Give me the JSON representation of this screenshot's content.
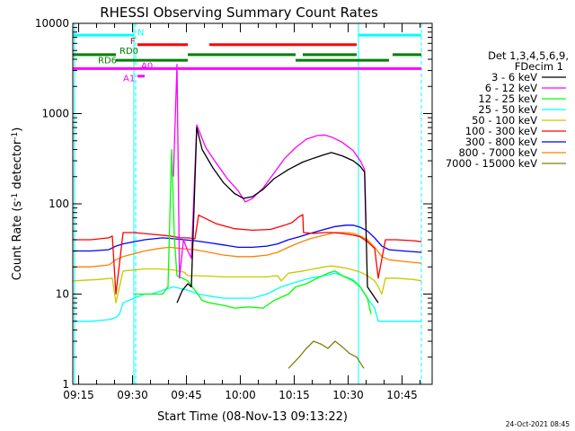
{
  "chart_data": {
    "type": "line",
    "title": "RHESSI Observing Summary Count Rates",
    "xlabel": "Start Time (08-Nov-13 09:13:22)",
    "ylabel_main": "Count Rate (s",
    "ylabel_sup1": "-1",
    "ylabel_mid": " detector",
    "ylabel_sup2": "-1",
    "ylabel_end": ")",
    "y_scale": "log",
    "ylim": [
      1,
      10000
    ],
    "xlim_minutes": [
      0,
      100
    ],
    "x_tick_labels": [
      "09:15",
      "09:30",
      "09:45",
      "10:00",
      "10:15",
      "10:30",
      "10:45"
    ],
    "y_tick_labels": [
      "1",
      "10",
      "100",
      "1000",
      "10000"
    ],
    "legend_title": [
      "Det 1,3,4,5,6,9,",
      "FDecim 1"
    ],
    "legend_position": "right",
    "grid": false,
    "series": [
      {
        "name": "3 - 6 keV",
        "color": "#000000",
        "points": [
          [
            29,
            8
          ],
          [
            30.5,
            11
          ],
          [
            32,
            13
          ],
          [
            33,
            12
          ],
          [
            34.5,
            700
          ],
          [
            36,
            400
          ],
          [
            39,
            250
          ],
          [
            42,
            170
          ],
          [
            45,
            130
          ],
          [
            47.5,
            115
          ],
          [
            50,
            120
          ],
          [
            53,
            145
          ],
          [
            56,
            190
          ],
          [
            60,
            240
          ],
          [
            64,
            290
          ],
          [
            67,
            320
          ],
          [
            70,
            350
          ],
          [
            72,
            370
          ],
          [
            75,
            340
          ],
          [
            78,
            300
          ],
          [
            80,
            260
          ],
          [
            81.2,
            225
          ],
          [
            82,
            12
          ],
          [
            85,
            8
          ]
        ]
      },
      {
        "name": "6 - 12 keV",
        "color": "#ff00ff",
        "points": [
          [
            28,
            200
          ],
          [
            29,
            3500
          ],
          [
            29.7,
            15
          ],
          [
            30.8,
            40
          ],
          [
            32,
            30
          ],
          [
            33,
            25
          ],
          [
            34.5,
            750
          ],
          [
            37,
            420
          ],
          [
            40,
            280
          ],
          [
            43,
            190
          ],
          [
            46,
            140
          ],
          [
            48,
            105
          ],
          [
            50,
            115
          ],
          [
            53,
            150
          ],
          [
            56,
            220
          ],
          [
            59,
            320
          ],
          [
            62,
            420
          ],
          [
            65,
            520
          ],
          [
            68,
            570
          ],
          [
            70,
            580
          ],
          [
            72,
            550
          ],
          [
            75,
            480
          ],
          [
            78,
            390
          ],
          [
            80,
            300
          ],
          [
            81.2,
            240
          ],
          [
            81.6,
            60
          ]
        ]
      },
      {
        "name": "12 - 25 keV",
        "color": "#00ff00",
        "points": [
          [
            17,
            10
          ],
          [
            22,
            10
          ],
          [
            25,
            10
          ],
          [
            26.5,
            12
          ],
          [
            27.5,
            400
          ],
          [
            28.3,
            40
          ],
          [
            29,
            16
          ],
          [
            32,
            14
          ],
          [
            34.8,
            10
          ],
          [
            36,
            8.5
          ],
          [
            38,
            8
          ],
          [
            42,
            7.5
          ],
          [
            45,
            7
          ],
          [
            49,
            7.2
          ],
          [
            53,
            7
          ],
          [
            56,
            8.5
          ],
          [
            60,
            10
          ],
          [
            62,
            12
          ],
          [
            65,
            13
          ],
          [
            68,
            15
          ],
          [
            71,
            17
          ],
          [
            73,
            18
          ],
          [
            75,
            16
          ],
          [
            78,
            14
          ],
          [
            80,
            12
          ],
          [
            82,
            9
          ],
          [
            83,
            6
          ]
        ]
      },
      {
        "name": "25 - 50 keV",
        "color": "#00ffff",
        "points": [
          [
            0,
            5
          ],
          [
            5,
            5
          ],
          [
            10,
            5.2
          ],
          [
            12,
            5.5
          ],
          [
            13,
            6
          ],
          [
            14,
            8
          ],
          [
            17,
            9
          ],
          [
            20,
            10
          ],
          [
            22,
            10
          ],
          [
            25,
            11
          ],
          [
            28,
            12
          ],
          [
            30,
            11.5
          ],
          [
            32,
            11
          ],
          [
            35,
            10
          ],
          [
            38,
            9.5
          ],
          [
            42,
            9
          ],
          [
            46,
            9
          ],
          [
            50,
            9
          ],
          [
            54,
            10
          ],
          [
            58,
            12
          ],
          [
            62,
            13.5
          ],
          [
            66,
            15
          ],
          [
            70,
            16
          ],
          [
            73,
            17
          ],
          [
            75,
            16
          ],
          [
            78,
            14.5
          ],
          [
            80,
            12
          ],
          [
            82,
            9
          ],
          [
            84,
            7
          ],
          [
            85,
            5
          ],
          [
            95,
            5
          ],
          [
            97,
            5
          ]
        ]
      },
      {
        "name": "50 - 100 keV",
        "color": "#c8c800",
        "points": [
          [
            0,
            14
          ],
          [
            7,
            14.5
          ],
          [
            11,
            15
          ],
          [
            12,
            8
          ],
          [
            14,
            18
          ],
          [
            20,
            19
          ],
          [
            24,
            19
          ],
          [
            28,
            18.5
          ],
          [
            31,
            17.5
          ],
          [
            32,
            16
          ],
          [
            34,
            16
          ],
          [
            38,
            15.8
          ],
          [
            42,
            15.5
          ],
          [
            46,
            15.5
          ],
          [
            50,
            15.5
          ],
          [
            54,
            15.5
          ],
          [
            57,
            16
          ],
          [
            58,
            14
          ],
          [
            60,
            17
          ],
          [
            64,
            18
          ],
          [
            67,
            19
          ],
          [
            70,
            20
          ],
          [
            72,
            20.5
          ],
          [
            74,
            20
          ],
          [
            77,
            19
          ],
          [
            80,
            17.5
          ],
          [
            82,
            16
          ],
          [
            84,
            14
          ],
          [
            85,
            12
          ],
          [
            86,
            10
          ],
          [
            87,
            15
          ],
          [
            90,
            15
          ],
          [
            95,
            14.5
          ],
          [
            97,
            14
          ]
        ]
      },
      {
        "name": "100 - 300 keV",
        "color": "#ff0000",
        "points": [
          [
            0,
            40
          ],
          [
            5,
            40
          ],
          [
            10,
            42
          ],
          [
            11,
            44
          ],
          [
            12,
            10
          ],
          [
            14,
            48
          ],
          [
            17,
            48
          ],
          [
            22,
            46
          ],
          [
            27,
            44
          ],
          [
            30,
            42
          ],
          [
            32,
            42
          ],
          [
            34,
            41
          ],
          [
            35,
            75
          ],
          [
            40,
            60
          ],
          [
            45,
            53
          ],
          [
            50,
            51
          ],
          [
            55,
            52
          ],
          [
            59,
            58
          ],
          [
            61,
            62
          ],
          [
            63,
            72
          ],
          [
            64,
            76
          ],
          [
            64.2,
            48
          ],
          [
            67,
            47
          ],
          [
            70,
            48
          ],
          [
            72,
            48
          ],
          [
            75,
            47
          ],
          [
            78,
            45
          ],
          [
            80,
            43
          ],
          [
            82,
            38
          ],
          [
            84,
            32
          ],
          [
            85,
            15
          ],
          [
            87,
            40
          ],
          [
            90,
            40
          ],
          [
            95,
            39
          ],
          [
            97,
            38
          ]
        ]
      },
      {
        "name": "300 - 800 keV",
        "color": "#0000ff",
        "points": [
          [
            0,
            30
          ],
          [
            5,
            30
          ],
          [
            10,
            31
          ],
          [
            12,
            34
          ],
          [
            14,
            36
          ],
          [
            17,
            38
          ],
          [
            20,
            40
          ],
          [
            25,
            42
          ],
          [
            28,
            41
          ],
          [
            31,
            40
          ],
          [
            34,
            39
          ],
          [
            38,
            37
          ],
          [
            42,
            35
          ],
          [
            46,
            33
          ],
          [
            50,
            33
          ],
          [
            54,
            34
          ],
          [
            57,
            36
          ],
          [
            60,
            40
          ],
          [
            63,
            43
          ],
          [
            66,
            47
          ],
          [
            70,
            52
          ],
          [
            73,
            56
          ],
          [
            76,
            58
          ],
          [
            78,
            58
          ],
          [
            80,
            55
          ],
          [
            82,
            50
          ],
          [
            84,
            42
          ],
          [
            86,
            34
          ],
          [
            88,
            31
          ],
          [
            92,
            30
          ],
          [
            97,
            29
          ]
        ]
      },
      {
        "name": "800 - 7000 keV",
        "color": "#ff8000",
        "points": [
          [
            0,
            20
          ],
          [
            5,
            20
          ],
          [
            10,
            21
          ],
          [
            12,
            24
          ],
          [
            14,
            26
          ],
          [
            17,
            28
          ],
          [
            20,
            30
          ],
          [
            24,
            32
          ],
          [
            27,
            33
          ],
          [
            30,
            32
          ],
          [
            34,
            31
          ],
          [
            38,
            29
          ],
          [
            42,
            27
          ],
          [
            46,
            26
          ],
          [
            50,
            26
          ],
          [
            54,
            27
          ],
          [
            57,
            29
          ],
          [
            60,
            33
          ],
          [
            63,
            37
          ],
          [
            66,
            41
          ],
          [
            70,
            45
          ],
          [
            73,
            48
          ],
          [
            76,
            48
          ],
          [
            78,
            47
          ],
          [
            80,
            44
          ],
          [
            82,
            40
          ],
          [
            84,
            33
          ],
          [
            86,
            26
          ],
          [
            88,
            24
          ],
          [
            92,
            23
          ],
          [
            97,
            22
          ]
        ]
      },
      {
        "name": "7000 - 15000 keV",
        "color": "#808000",
        "points": [
          [
            60,
            1.5
          ],
          [
            63,
            2
          ],
          [
            65,
            2.5
          ],
          [
            67,
            3
          ],
          [
            69,
            2.8
          ],
          [
            71,
            2.5
          ],
          [
            73,
            3
          ],
          [
            75,
            2.6
          ],
          [
            77,
            2.2
          ],
          [
            79,
            2
          ],
          [
            81,
            1.5
          ]
        ]
      }
    ],
    "flags": [
      {
        "label": "N",
        "color": "#00ffff",
        "segments": [
          [
            0,
            17
          ],
          [
            79.5,
            97
          ]
        ]
      },
      {
        "label": "F",
        "color": "#ff0000",
        "segments": [
          [
            18,
            32
          ],
          [
            38,
            79
          ]
        ]
      },
      {
        "label": "RD0",
        "color": "#008000",
        "segments": [
          [
            0,
            12
          ],
          [
            32,
            62
          ],
          [
            64,
            79
          ],
          [
            89,
            97
          ]
        ]
      },
      {
        "label": "RD6",
        "color": "#008000",
        "segments": [
          [
            12,
            32
          ],
          [
            62,
            88
          ]
        ]
      },
      {
        "label": "A0",
        "color": "#ff00ff",
        "segments": [
          [
            0,
            97
          ]
        ]
      },
      {
        "label": "A1",
        "color": "#ff00ff",
        "segments": [
          [
            18,
            20
          ]
        ]
      }
    ],
    "vertical_lines": [
      {
        "color": "#00ffff",
        "style": "solid",
        "x": 0.5
      },
      {
        "color": "#00ffff",
        "style": "solid",
        "x": 17
      },
      {
        "color": "#00ffff",
        "style": "dashed",
        "x": 17.5
      },
      {
        "color": "#00ffff",
        "style": "solid",
        "x": 79.5
      },
      {
        "color": "#00ffff",
        "style": "dashed",
        "x": 97
      }
    ],
    "timestamp": "24-Oct-2021 08:45"
  }
}
